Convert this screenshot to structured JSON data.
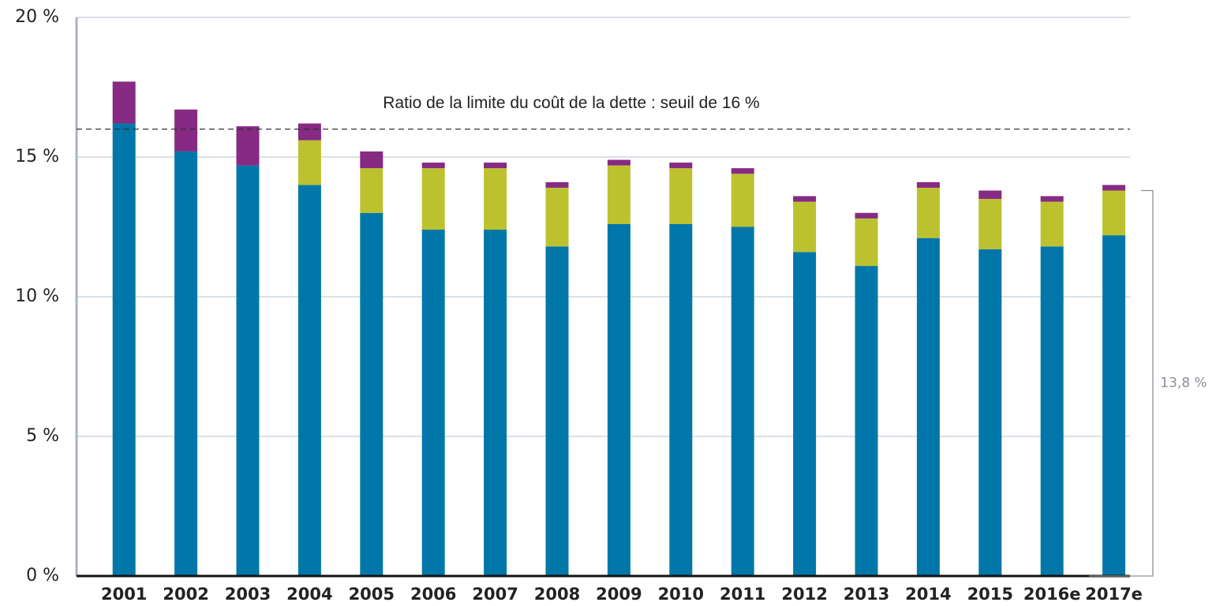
{
  "chart_data": {
    "type": "stacked_bar",
    "categories": [
      "2001",
      "2002",
      "2003",
      "2004",
      "2005",
      "2006",
      "2007",
      "2008",
      "2009",
      "2010",
      "2011",
      "2012",
      "2013",
      "2014",
      "2015",
      "2016e",
      "2017e"
    ],
    "series": [
      {
        "color": "#0077a8",
        "values": [
          16.2,
          15.2,
          14.7,
          14.0,
          13.0,
          12.4,
          12.4,
          11.8,
          12.6,
          12.6,
          12.5,
          11.6,
          11.1,
          12.1,
          11.7,
          11.8,
          12.2
        ]
      },
      {
        "color": "#bcc22e",
        "values": [
          0,
          0,
          0,
          1.6,
          1.6,
          2.2,
          2.2,
          2.1,
          2.1,
          2.0,
          1.9,
          1.8,
          1.7,
          1.8,
          1.8,
          1.6,
          1.6
        ]
      },
      {
        "color": "#862a83",
        "values": [
          1.5,
          1.5,
          1.4,
          0.6,
          0.6,
          0.2,
          0.2,
          0.2,
          0.2,
          0.2,
          0.2,
          0.2,
          0.2,
          0.2,
          0.3,
          0.2,
          0.2
        ]
      }
    ],
    "ylim": [
      0,
      20
    ],
    "yticks": [
      {
        "value": 0,
        "label": "0 %"
      },
      {
        "value": 5,
        "label": "5 %"
      },
      {
        "value": 10,
        "label": "10 %"
      },
      {
        "value": 15,
        "label": "15 %"
      },
      {
        "value": 20,
        "label": "20 %"
      }
    ],
    "grid": true,
    "threshold": {
      "value": 16,
      "label": "Ratio de la limite du coût de la dette : seuil de 16 %"
    },
    "bracket": {
      "value": 13.8,
      "label": "13,8 %"
    }
  }
}
